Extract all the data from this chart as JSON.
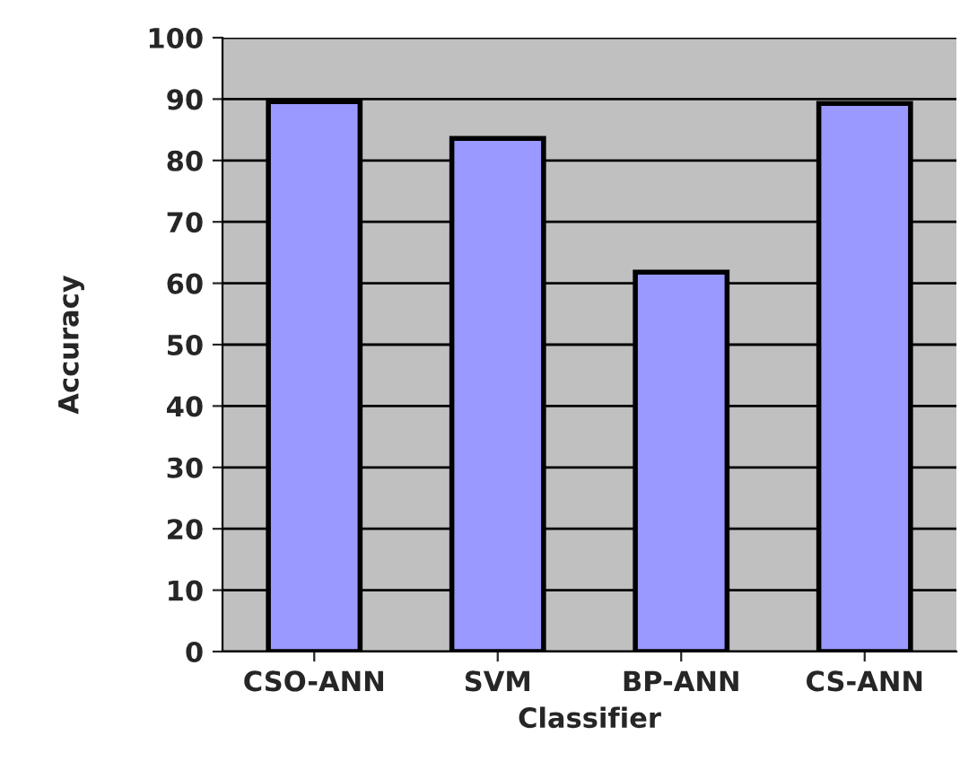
{
  "chart_data": {
    "type": "bar",
    "xlabel": "Classifier",
    "ylabel": "Accuracy",
    "categories": [
      "CSO-ANN",
      "SVM",
      "BP-ANN",
      "CS-ANN"
    ],
    "values": [
      89.6,
      83.6,
      61.8,
      89.3
    ],
    "color": "#9999ff",
    "ylim": [
      0,
      100
    ],
    "yticks": [
      0,
      10,
      20,
      30,
      40,
      50,
      60,
      70,
      80,
      90,
      100
    ],
    "grid": "y"
  }
}
